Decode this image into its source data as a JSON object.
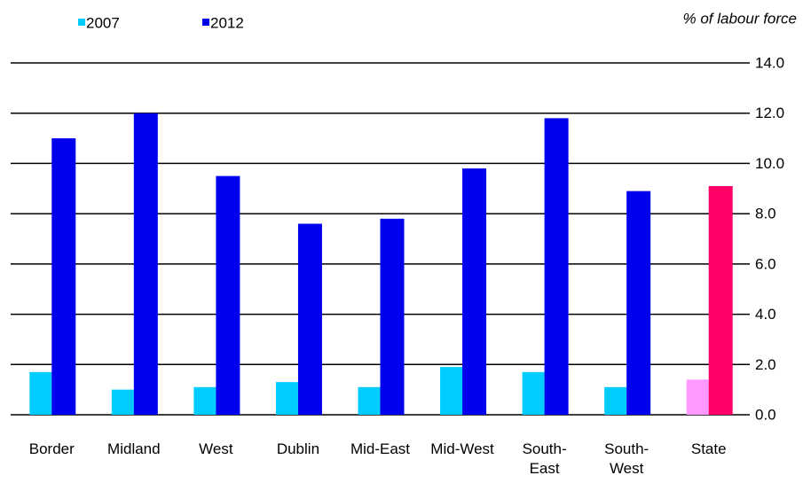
{
  "chart_data": {
    "type": "bar",
    "unit_label": "% of labour force",
    "categories": [
      "Border",
      "Midland",
      "West",
      "Dublin",
      "Mid-East",
      "Mid-West",
      "South-\nEast",
      "South-\nWest",
      "State"
    ],
    "series": [
      {
        "name": "2007",
        "color": "#00ccff",
        "colors": [
          "#00ccff",
          "#00ccff",
          "#00ccff",
          "#00ccff",
          "#00ccff",
          "#00ccff",
          "#00ccff",
          "#00ccff",
          "#ff99ff"
        ],
        "values": [
          1.7,
          1.0,
          1.1,
          1.3,
          1.1,
          1.9,
          1.7,
          1.1,
          1.4
        ]
      },
      {
        "name": "2012",
        "color": "#0000ee",
        "colors": [
          "#0000ee",
          "#0000ee",
          "#0000ee",
          "#0000ee",
          "#0000ee",
          "#0000ee",
          "#0000ee",
          "#0000ee",
          "#ff0066"
        ],
        "values": [
          11.0,
          12.0,
          9.5,
          7.6,
          7.8,
          9.8,
          11.8,
          8.9,
          9.1
        ]
      }
    ],
    "ylim": [
      0,
      14
    ],
    "yticks": [
      {
        "value": 0,
        "label": "0.0"
      },
      {
        "value": 2,
        "label": "2.0"
      },
      {
        "value": 4,
        "label": "4.0"
      },
      {
        "value": 6,
        "label": "6.0"
      },
      {
        "value": 8,
        "label": "8.0"
      },
      {
        "value": 10,
        "label": "10.0"
      },
      {
        "value": 12,
        "label": "12.0"
      },
      {
        "value": 14,
        "label": "14.0"
      }
    ],
    "grid": true
  }
}
